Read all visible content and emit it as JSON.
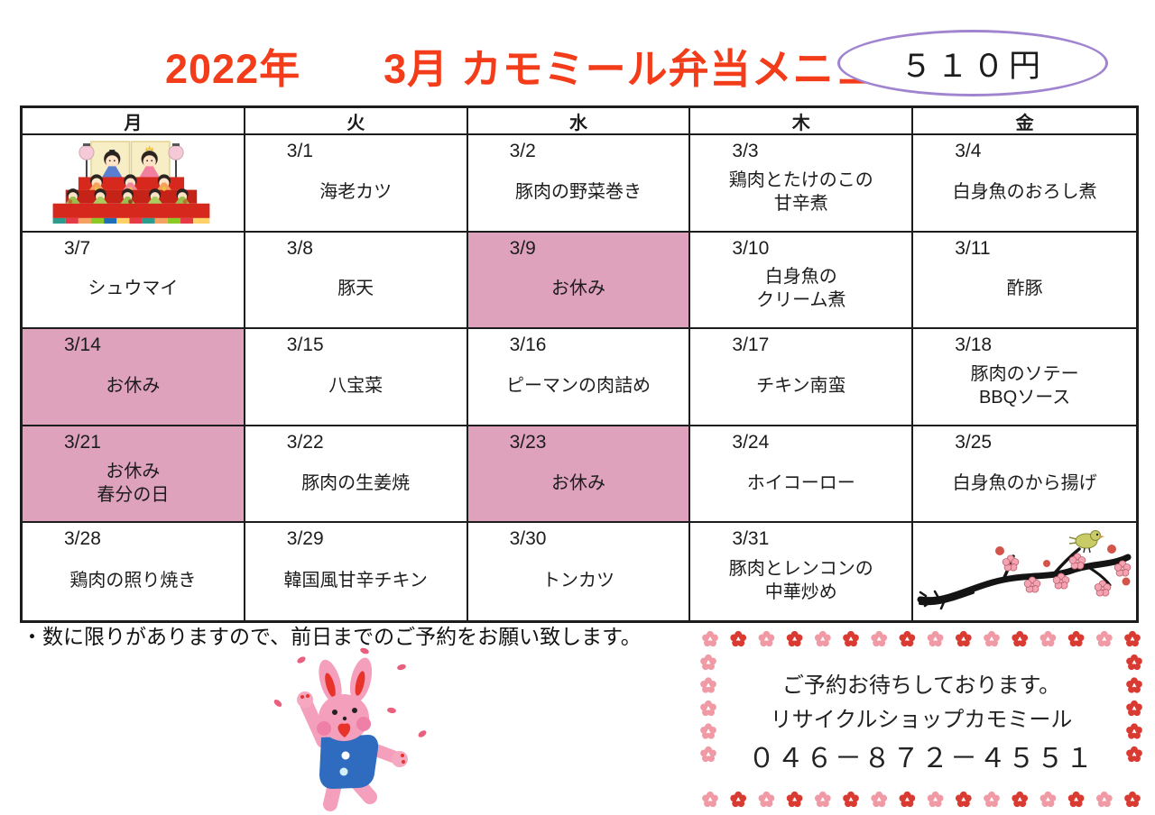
{
  "header": {
    "title": "2022年　　3月 カモミール弁当メニュー",
    "price": "５１０円"
  },
  "calendar": {
    "weekdays": [
      "月",
      "火",
      "水",
      "木",
      "金"
    ],
    "rows": [
      [
        {
          "kind": "image",
          "illustration": "hina-dolls"
        },
        {
          "date": "3/1",
          "dish": "海老カツ"
        },
        {
          "date": "3/2",
          "dish": "豚肉の野菜巻き"
        },
        {
          "date": "3/3",
          "dish": "鶏肉とたけのこの\n甘辛煮"
        },
        {
          "date": "3/4",
          "dish": "白身魚のおろし煮"
        }
      ],
      [
        {
          "date": "3/7",
          "dish": "シュウマイ"
        },
        {
          "date": "3/8",
          "dish": "豚天"
        },
        {
          "date": "3/9",
          "dish": "お休み",
          "off": true
        },
        {
          "date": "3/10",
          "dish": "白身魚の\nクリーム煮"
        },
        {
          "date": "3/11",
          "dish": "酢豚"
        }
      ],
      [
        {
          "date": "3/14",
          "dish": "お休み",
          "off": true
        },
        {
          "date": "3/15",
          "dish": "八宝菜"
        },
        {
          "date": "3/16",
          "dish": "ピーマンの肉詰め"
        },
        {
          "date": "3/17",
          "dish": "チキン南蛮"
        },
        {
          "date": "3/18",
          "dish": "豚肉のソテー\nBBQソース"
        }
      ],
      [
        {
          "date": "3/21",
          "dish": "お休み\n春分の日",
          "off": true
        },
        {
          "date": "3/22",
          "dish": "豚肉の生姜焼"
        },
        {
          "date": "3/23",
          "dish": "お休み",
          "off": true
        },
        {
          "date": "3/24",
          "dish": "ホイコーロー"
        },
        {
          "date": "3/25",
          "dish": "白身魚のから揚げ"
        }
      ],
      [
        {
          "date": "3/28",
          "dish": "鶏肉の照り焼き"
        },
        {
          "date": "3/29",
          "dish": "韓国風甘辛チキン"
        },
        {
          "date": "3/30",
          "dish": "トンカツ"
        },
        {
          "date": "3/31",
          "dish": "豚肉とレンコンの\n中華炒め"
        },
        {
          "kind": "image",
          "illustration": "plum-branch-with-bird"
        }
      ]
    ]
  },
  "note": "・数に限りがありますので、前日までのご予約をお願い致します。",
  "contact": {
    "line1": "ご予約お待ちしております。",
    "line2": "リサイクルショップカモミール",
    "phone": "０４６－８７２－４５５１"
  },
  "illustrations": {
    "monday_cell": "hina-dolls-illustration",
    "friday_cell": "plum-branch-bird-illustration",
    "bottom_left": "jumping-rabbit-illustration",
    "contact_border": "plum-flower-border"
  },
  "colors": {
    "title_red": "#f23c1a",
    "holiday_pink": "#dfa2bd",
    "oval_purple": "#a184d0",
    "flower_red": "#d93a31",
    "flower_pink": "#ef9aa4"
  }
}
